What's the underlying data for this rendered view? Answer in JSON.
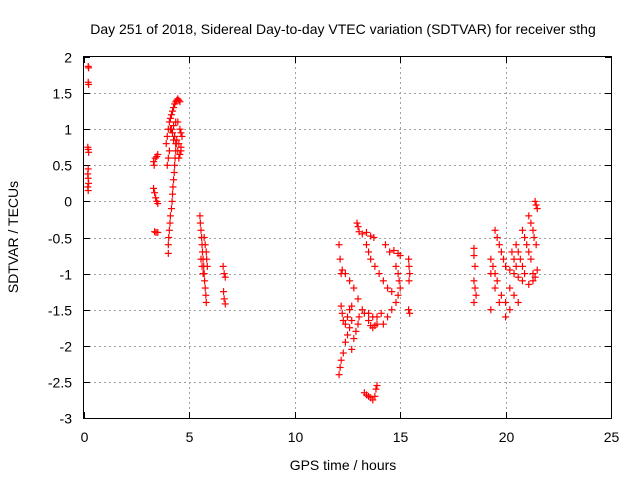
{
  "chart_data": {
    "type": "scatter",
    "title": "Day 251 of 2018, Sidereal Day-to-day VTEC variation (SDTVAR) for receiver sthg",
    "xlabel": "GPS time / hours",
    "ylabel": "SDTVAR / TECUs",
    "xlim": [
      0,
      25
    ],
    "ylim": [
      -3,
      2
    ],
    "x_ticks": [
      {
        "value": 0,
        "label": "0"
      },
      {
        "value": 5,
        "label": "5"
      },
      {
        "value": 10,
        "label": "10"
      },
      {
        "value": 15,
        "label": "15"
      },
      {
        "value": 20,
        "label": "20"
      },
      {
        "value": 25,
        "label": "25"
      }
    ],
    "y_ticks": [
      {
        "value": 2,
        "label": "2"
      },
      {
        "value": 1.5,
        "label": "1.5"
      },
      {
        "value": 1,
        "label": "1"
      },
      {
        "value": 0.5,
        "label": "0.5"
      },
      {
        "value": 0,
        "label": "0"
      },
      {
        "value": -0.5,
        "label": "-0.5"
      },
      {
        "value": -1,
        "label": "-1"
      },
      {
        "value": -1.5,
        "label": "-1.5"
      },
      {
        "value": -2,
        "label": "-2"
      },
      {
        "value": -2.5,
        "label": "-2.5"
      },
      {
        "value": -3,
        "label": "-3"
      }
    ],
    "grid": true,
    "marker": "+",
    "color": "#ff0000",
    "series": [
      {
        "name": "SDTVAR",
        "points": [
          [
            0.2,
            1.87
          ],
          [
            0.22,
            1.85
          ],
          [
            0.2,
            1.65
          ],
          [
            0.22,
            1.62
          ],
          [
            0.18,
            0.75
          ],
          [
            0.2,
            0.72
          ],
          [
            0.22,
            0.68
          ],
          [
            0.2,
            0.45
          ],
          [
            0.18,
            0.38
          ],
          [
            0.2,
            0.32
          ],
          [
            0.22,
            0.25
          ],
          [
            0.18,
            0.2
          ],
          [
            0.2,
            0.15
          ],
          [
            3.3,
            0.55
          ],
          [
            3.38,
            0.6
          ],
          [
            3.45,
            0.62
          ],
          [
            3.5,
            0.65
          ],
          [
            3.33,
            0.5
          ],
          [
            3.3,
            0.18
          ],
          [
            3.35,
            0.12
          ],
          [
            3.4,
            0.05
          ],
          [
            3.45,
            0.0
          ],
          [
            3.5,
            -0.03
          ],
          [
            3.35,
            -0.42
          ],
          [
            3.42,
            -0.43
          ],
          [
            3.5,
            -0.43
          ],
          [
            4.0,
            -0.72
          ],
          [
            4.0,
            -0.6
          ],
          [
            4.02,
            -0.5
          ],
          [
            4.05,
            -0.4
          ],
          [
            4.08,
            -0.3
          ],
          [
            4.1,
            -0.2
          ],
          [
            4.15,
            -0.1
          ],
          [
            4.18,
            0.0
          ],
          [
            4.2,
            0.1
          ],
          [
            4.22,
            0.2
          ],
          [
            4.25,
            0.3
          ],
          [
            4.28,
            0.4
          ],
          [
            4.3,
            0.5
          ],
          [
            4.32,
            0.6
          ],
          [
            4.35,
            0.7
          ],
          [
            4.38,
            0.8
          ],
          [
            3.95,
            0.5
          ],
          [
            4.0,
            0.6
          ],
          [
            4.05,
            0.7
          ],
          [
            3.9,
            0.8
          ],
          [
            3.95,
            0.9
          ],
          [
            4.0,
            1.0
          ],
          [
            4.1,
            1.0
          ],
          [
            4.2,
            0.95
          ],
          [
            4.3,
            0.9
          ],
          [
            4.4,
            0.85
          ],
          [
            4.5,
            0.8
          ],
          [
            4.6,
            0.75
          ],
          [
            4.05,
            1.1
          ],
          [
            4.1,
            1.15
          ],
          [
            4.15,
            1.2
          ],
          [
            4.2,
            1.25
          ],
          [
            4.25,
            1.3
          ],
          [
            4.3,
            1.35
          ],
          [
            4.35,
            1.38
          ],
          [
            4.4,
            1.4
          ],
          [
            4.45,
            1.42
          ],
          [
            4.5,
            1.4
          ],
          [
            4.55,
            1.38
          ],
          [
            4.15,
            1.0
          ],
          [
            4.25,
            1.05
          ],
          [
            4.35,
            1.1
          ],
          [
            4.45,
            1.1
          ],
          [
            4.55,
            1.0
          ],
          [
            4.6,
            0.95
          ],
          [
            4.65,
            0.9
          ],
          [
            4.5,
            0.6
          ],
          [
            4.55,
            0.65
          ],
          [
            4.6,
            0.7
          ],
          [
            4.25,
            0.85
          ],
          [
            4.35,
            0.8
          ],
          [
            4.45,
            0.7
          ],
          [
            5.5,
            -0.2
          ],
          [
            5.52,
            -0.3
          ],
          [
            5.55,
            -0.4
          ],
          [
            5.58,
            -0.5
          ],
          [
            5.6,
            -0.6
          ],
          [
            5.62,
            -0.7
          ],
          [
            5.65,
            -0.8
          ],
          [
            5.68,
            -0.9
          ],
          [
            5.7,
            -1.0
          ],
          [
            5.72,
            -1.1
          ],
          [
            5.75,
            -1.2
          ],
          [
            5.78,
            -1.3
          ],
          [
            5.8,
            -1.4
          ],
          [
            5.55,
            -0.8
          ],
          [
            5.6,
            -0.9
          ],
          [
            5.65,
            -1.0
          ],
          [
            5.7,
            -0.5
          ],
          [
            5.75,
            -0.6
          ],
          [
            5.8,
            -0.7
          ],
          [
            5.82,
            -0.8
          ],
          [
            5.85,
            -0.9
          ],
          [
            6.6,
            -0.9
          ],
          [
            6.65,
            -1.0
          ],
          [
            6.7,
            -1.05
          ],
          [
            6.62,
            -1.25
          ],
          [
            6.65,
            -1.35
          ],
          [
            6.7,
            -1.42
          ],
          [
            12.1,
            -0.6
          ],
          [
            12.15,
            -0.8
          ],
          [
            12.2,
            -1.0
          ],
          [
            12.25,
            -0.95
          ],
          [
            12.4,
            -1.0
          ],
          [
            12.6,
            -1.1
          ],
          [
            12.8,
            -1.2
          ],
          [
            13.0,
            -1.35
          ],
          [
            13.2,
            -1.5
          ],
          [
            12.2,
            -1.45
          ],
          [
            12.25,
            -1.55
          ],
          [
            12.3,
            -1.65
          ],
          [
            12.4,
            -1.7
          ],
          [
            12.5,
            -1.6
          ],
          [
            12.6,
            -1.5
          ],
          [
            12.7,
            -1.45
          ],
          [
            12.1,
            -2.4
          ],
          [
            12.15,
            -2.3
          ],
          [
            12.2,
            -2.2
          ],
          [
            12.3,
            -2.1
          ],
          [
            12.4,
            -1.95
          ],
          [
            12.5,
            -1.85
          ],
          [
            12.6,
            -1.75
          ],
          [
            12.7,
            -1.65
          ],
          [
            12.7,
            -2.05
          ],
          [
            12.8,
            -1.9
          ],
          [
            12.9,
            -1.8
          ],
          [
            13.0,
            -1.7
          ],
          [
            13.05,
            -1.6
          ],
          [
            12.95,
            -0.3
          ],
          [
            13.0,
            -0.35
          ],
          [
            13.05,
            -0.42
          ],
          [
            13.2,
            -0.45
          ],
          [
            13.4,
            -0.43
          ],
          [
            13.6,
            -0.48
          ],
          [
            13.75,
            -0.5
          ],
          [
            13.4,
            -0.6
          ],
          [
            13.5,
            -0.7
          ],
          [
            13.6,
            -0.8
          ],
          [
            13.8,
            -0.9
          ],
          [
            14.0,
            -1.0
          ],
          [
            14.2,
            -1.1
          ],
          [
            14.4,
            -1.2
          ],
          [
            14.6,
            -1.25
          ],
          [
            13.5,
            -1.65
          ],
          [
            13.6,
            -1.72
          ],
          [
            13.7,
            -1.75
          ],
          [
            13.8,
            -1.72
          ],
          [
            13.9,
            -1.7
          ],
          [
            13.3,
            -1.55
          ],
          [
            13.5,
            -1.55
          ],
          [
            13.7,
            -1.6
          ],
          [
            13.9,
            -1.6
          ],
          [
            14.1,
            -1.55
          ],
          [
            13.3,
            -2.65
          ],
          [
            13.4,
            -2.68
          ],
          [
            13.5,
            -2.7
          ],
          [
            13.6,
            -2.72
          ],
          [
            13.7,
            -2.75
          ],
          [
            13.8,
            -2.7
          ],
          [
            13.85,
            -2.6
          ],
          [
            13.9,
            -2.55
          ],
          [
            14.3,
            -0.6
          ],
          [
            14.5,
            -0.7
          ],
          [
            14.7,
            -0.68
          ],
          [
            14.9,
            -0.72
          ],
          [
            15.0,
            -0.75
          ],
          [
            14.8,
            -0.9
          ],
          [
            14.9,
            -1.0
          ],
          [
            14.95,
            -1.1
          ],
          [
            15.0,
            -1.2
          ],
          [
            14.9,
            -1.3
          ],
          [
            14.8,
            -1.4
          ],
          [
            14.6,
            -1.5
          ],
          [
            14.4,
            -1.6
          ],
          [
            14.2,
            -1.7
          ],
          [
            15.4,
            -0.8
          ],
          [
            15.42,
            -0.9
          ],
          [
            15.45,
            -1.0
          ],
          [
            15.42,
            -1.1
          ],
          [
            15.4,
            -1.5
          ],
          [
            15.45,
            -1.55
          ],
          [
            18.5,
            -0.65
          ],
          [
            18.5,
            -0.75
          ],
          [
            18.55,
            -0.9
          ],
          [
            18.5,
            -1.1
          ],
          [
            18.55,
            -1.2
          ],
          [
            18.6,
            -1.3
          ],
          [
            18.5,
            -1.4
          ],
          [
            19.3,
            -0.8
          ],
          [
            19.4,
            -0.9
          ],
          [
            19.5,
            -1.0
          ],
          [
            19.6,
            -1.1
          ],
          [
            19.8,
            -1.3
          ],
          [
            20.0,
            -1.4
          ],
          [
            20.2,
            -1.5
          ],
          [
            20.0,
            -1.6
          ],
          [
            19.3,
            -1.0
          ],
          [
            19.5,
            -1.2
          ],
          [
            19.7,
            -1.4
          ],
          [
            19.3,
            -1.5
          ],
          [
            19.5,
            -0.4
          ],
          [
            19.6,
            -0.5
          ],
          [
            19.7,
            -0.6
          ],
          [
            19.8,
            -0.7
          ],
          [
            19.9,
            -0.8
          ],
          [
            20.0,
            -0.9
          ],
          [
            20.2,
            -0.95
          ],
          [
            20.4,
            -1.0
          ],
          [
            20.6,
            -1.05
          ],
          [
            20.8,
            -1.1
          ],
          [
            20.5,
            -0.6
          ],
          [
            20.6,
            -0.7
          ],
          [
            20.7,
            -0.8
          ],
          [
            20.8,
            -0.9
          ],
          [
            20.9,
            -1.0
          ],
          [
            20.2,
            -1.2
          ],
          [
            20.4,
            -1.3
          ],
          [
            20.6,
            -1.4
          ],
          [
            20.8,
            -0.4
          ],
          [
            20.9,
            -0.5
          ],
          [
            21.0,
            -0.6
          ],
          [
            21.1,
            -0.7
          ],
          [
            21.2,
            -0.8
          ],
          [
            21.1,
            -0.2
          ],
          [
            21.2,
            -0.3
          ],
          [
            21.3,
            -0.4
          ],
          [
            21.35,
            -0.5
          ],
          [
            21.45,
            -0.6
          ],
          [
            21.4,
            0.0
          ],
          [
            21.45,
            -0.05
          ],
          [
            21.5,
            -0.1
          ],
          [
            21.3,
            -1.0
          ],
          [
            21.4,
            -1.05
          ],
          [
            21.5,
            -0.95
          ],
          [
            21.3,
            -1.1
          ],
          [
            21.1,
            -1.15
          ],
          [
            20.3,
            -0.7
          ],
          [
            20.4,
            -0.8
          ],
          [
            20.5,
            -0.9
          ]
        ]
      }
    ]
  }
}
